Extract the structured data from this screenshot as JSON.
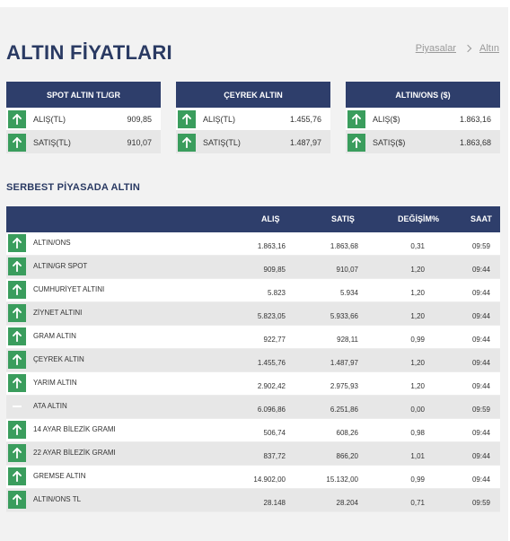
{
  "page_title": "ALTIN FİYATLARI",
  "breadcrumb": [
    "Piyasalar",
    "Altın"
  ],
  "cards": [
    {
      "title": "SPOT ALTIN TL/GR",
      "rows": [
        {
          "label": "ALIŞ(TL)",
          "value": "909,85",
          "trend": "up"
        },
        {
          "label": "SATIŞ(TL)",
          "value": "910,07",
          "trend": "up"
        }
      ]
    },
    {
      "title": "ÇEYREK ALTIN",
      "rows": [
        {
          "label": "ALIŞ(TL)",
          "value": "1.455,76",
          "trend": "up"
        },
        {
          "label": "SATIŞ(TL)",
          "value": "1.487,97",
          "trend": "up"
        }
      ]
    },
    {
      "title": "ALTIN/ONS ($)",
      "rows": [
        {
          "label": "ALIŞ($)",
          "value": "1.863,16",
          "trend": "up"
        },
        {
          "label": "SATIŞ($)",
          "value": "1.863,68",
          "trend": "up"
        }
      ]
    }
  ],
  "section_title": "SERBEST PİYASADA ALTIN",
  "table": {
    "headers": {
      "buy": "ALIŞ",
      "sell": "SATIŞ",
      "change": "DEĞİŞİM%",
      "time": "SAAT"
    },
    "rows": [
      {
        "name": "ALTIN/ONS",
        "buy": "1.863,16",
        "sell": "1.863,68",
        "change": "0,31",
        "time": "09:59",
        "trend": "up"
      },
      {
        "name": "ALTIN/GR SPOT",
        "buy": "909,85",
        "sell": "910,07",
        "change": "1,20",
        "time": "09:44",
        "trend": "up"
      },
      {
        "name": "CUMHURİYET ALTINI",
        "buy": "5.823",
        "sell": "5.934",
        "change": "1,20",
        "time": "09:44",
        "trend": "up"
      },
      {
        "name": "ZİYNET ALTINI",
        "buy": "5.823,05",
        "sell": "5.933,66",
        "change": "1,20",
        "time": "09:44",
        "trend": "up"
      },
      {
        "name": "GRAM ALTIN",
        "buy": "922,77",
        "sell": "928,11",
        "change": "0,99",
        "time": "09:44",
        "trend": "up"
      },
      {
        "name": "ÇEYREK ALTIN",
        "buy": "1.455,76",
        "sell": "1.487,97",
        "change": "1,20",
        "time": "09:44",
        "trend": "up"
      },
      {
        "name": "YARIM ALTIN",
        "buy": "2.902,42",
        "sell": "2.975,93",
        "change": "1,20",
        "time": "09:44",
        "trend": "up"
      },
      {
        "name": "ATA ALTIN",
        "buy": "6.096,86",
        "sell": "6.251,86",
        "change": "0,00",
        "time": "09:59",
        "trend": "flat"
      },
      {
        "name": "14 AYAR BİLEZİK GRAMI",
        "buy": "506,74",
        "sell": "608,26",
        "change": "0,98",
        "time": "09:44",
        "trend": "up"
      },
      {
        "name": "22 AYAR BİLEZİK GRAMI",
        "buy": "837,72",
        "sell": "866,20",
        "change": "1,01",
        "time": "09:44",
        "trend": "up"
      },
      {
        "name": "GREMSE ALTIN",
        "buy": "14.902,00",
        "sell": "15.132,00",
        "change": "0,99",
        "time": "09:44",
        "trend": "up"
      },
      {
        "name": "ALTIN/ONS TL",
        "buy": "28.148",
        "sell": "28.204",
        "change": "0,71",
        "time": "09:59",
        "trend": "up"
      }
    ]
  },
  "colors": {
    "header_bg": "#2e3e6b",
    "up": "#3a9d5d",
    "title": "#2a3a63"
  },
  "icons": {
    "up": "arrow-up-icon",
    "flat": "dash-icon"
  }
}
